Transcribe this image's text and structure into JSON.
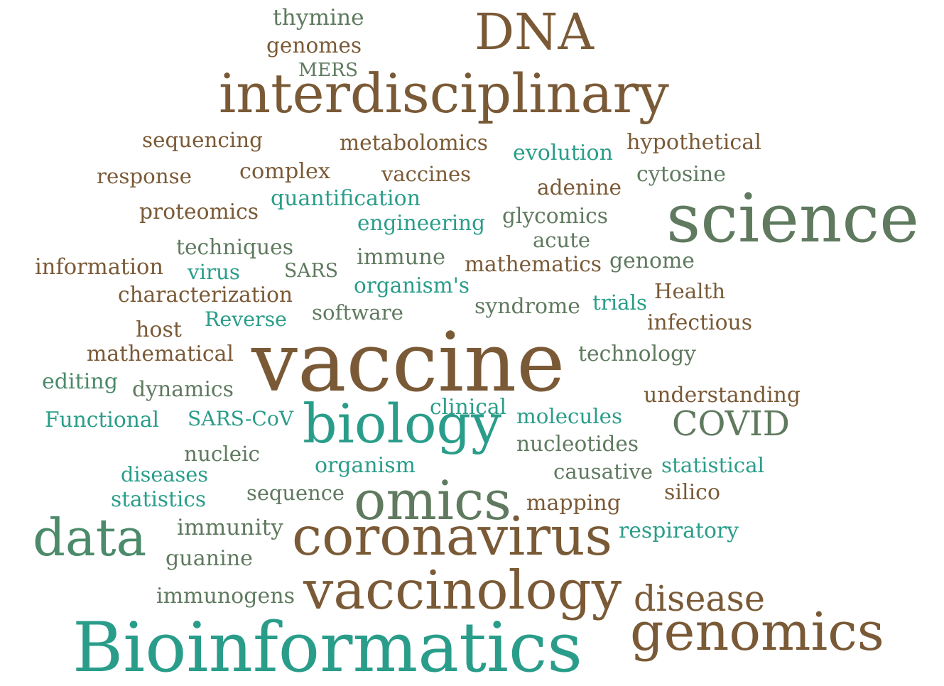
{
  "palette": {
    "brown": "#7a5a36",
    "olive": "#5f7a5f",
    "teal": "#2a9d8a",
    "green": "#4b8a6a"
  },
  "words": [
    {
      "text": "thymine",
      "color": "olive"
    },
    {
      "text": "genomes",
      "color": "brown"
    },
    {
      "text": "MERS",
      "color": "olive"
    },
    {
      "text": "DNA",
      "color": "brown"
    },
    {
      "text": "interdisciplinary",
      "color": "brown"
    },
    {
      "text": "sequencing",
      "color": "brown"
    },
    {
      "text": "metabolomics",
      "color": "brown"
    },
    {
      "text": "evolution",
      "color": "teal"
    },
    {
      "text": "hypothetical",
      "color": "brown"
    },
    {
      "text": "response",
      "color": "brown"
    },
    {
      "text": "complex",
      "color": "brown"
    },
    {
      "text": "vaccines",
      "color": "brown"
    },
    {
      "text": "cytosine",
      "color": "olive"
    },
    {
      "text": "adenine",
      "color": "brown"
    },
    {
      "text": "quantification",
      "color": "teal"
    },
    {
      "text": "proteomics",
      "color": "brown"
    },
    {
      "text": "engineering",
      "color": "teal"
    },
    {
      "text": "glycomics",
      "color": "olive"
    },
    {
      "text": "science",
      "color": "olive"
    },
    {
      "text": "acute",
      "color": "olive"
    },
    {
      "text": "techniques",
      "color": "olive"
    },
    {
      "text": "immune",
      "color": "olive"
    },
    {
      "text": "information",
      "color": "brown"
    },
    {
      "text": "virus",
      "color": "teal"
    },
    {
      "text": "SARS",
      "color": "olive"
    },
    {
      "text": "mathematics",
      "color": "brown"
    },
    {
      "text": "genome",
      "color": "olive"
    },
    {
      "text": "organism's",
      "color": "teal"
    },
    {
      "text": "characterization",
      "color": "brown"
    },
    {
      "text": "Health",
      "color": "brown"
    },
    {
      "text": "trials",
      "color": "teal"
    },
    {
      "text": "syndrome",
      "color": "olive"
    },
    {
      "text": "software",
      "color": "olive"
    },
    {
      "text": "Reverse",
      "color": "teal"
    },
    {
      "text": "infectious",
      "color": "brown"
    },
    {
      "text": "host",
      "color": "brown"
    },
    {
      "text": "vaccine",
      "color": "brown"
    },
    {
      "text": "mathematical",
      "color": "brown"
    },
    {
      "text": "technology",
      "color": "olive"
    },
    {
      "text": "editing",
      "color": "green"
    },
    {
      "text": "dynamics",
      "color": "olive"
    },
    {
      "text": "understanding",
      "color": "brown"
    },
    {
      "text": "clinical",
      "color": "teal"
    },
    {
      "text": "Functional",
      "color": "teal"
    },
    {
      "text": "SARS-CoV",
      "color": "teal"
    },
    {
      "text": "biology",
      "color": "teal"
    },
    {
      "text": "molecules",
      "color": "teal"
    },
    {
      "text": "COVID",
      "color": "olive"
    },
    {
      "text": "nucleic",
      "color": "olive"
    },
    {
      "text": "nucleotides",
      "color": "olive"
    },
    {
      "text": "organism",
      "color": "teal"
    },
    {
      "text": "diseases",
      "color": "teal"
    },
    {
      "text": "causative",
      "color": "olive"
    },
    {
      "text": "statistical",
      "color": "teal"
    },
    {
      "text": "statistics",
      "color": "teal"
    },
    {
      "text": "sequence",
      "color": "olive"
    },
    {
      "text": "omics",
      "color": "olive"
    },
    {
      "text": "silico",
      "color": "brown"
    },
    {
      "text": "mapping",
      "color": "brown"
    },
    {
      "text": "data",
      "color": "green"
    },
    {
      "text": "immunity",
      "color": "olive"
    },
    {
      "text": "coronavirus",
      "color": "brown"
    },
    {
      "text": "respiratory",
      "color": "teal"
    },
    {
      "text": "guanine",
      "color": "olive"
    },
    {
      "text": "immunogens",
      "color": "olive"
    },
    {
      "text": "vaccinology",
      "color": "brown"
    },
    {
      "text": "disease",
      "color": "brown"
    },
    {
      "text": "genomics",
      "color": "brown"
    },
    {
      "text": "Bioinformatics",
      "color": "teal"
    }
  ]
}
